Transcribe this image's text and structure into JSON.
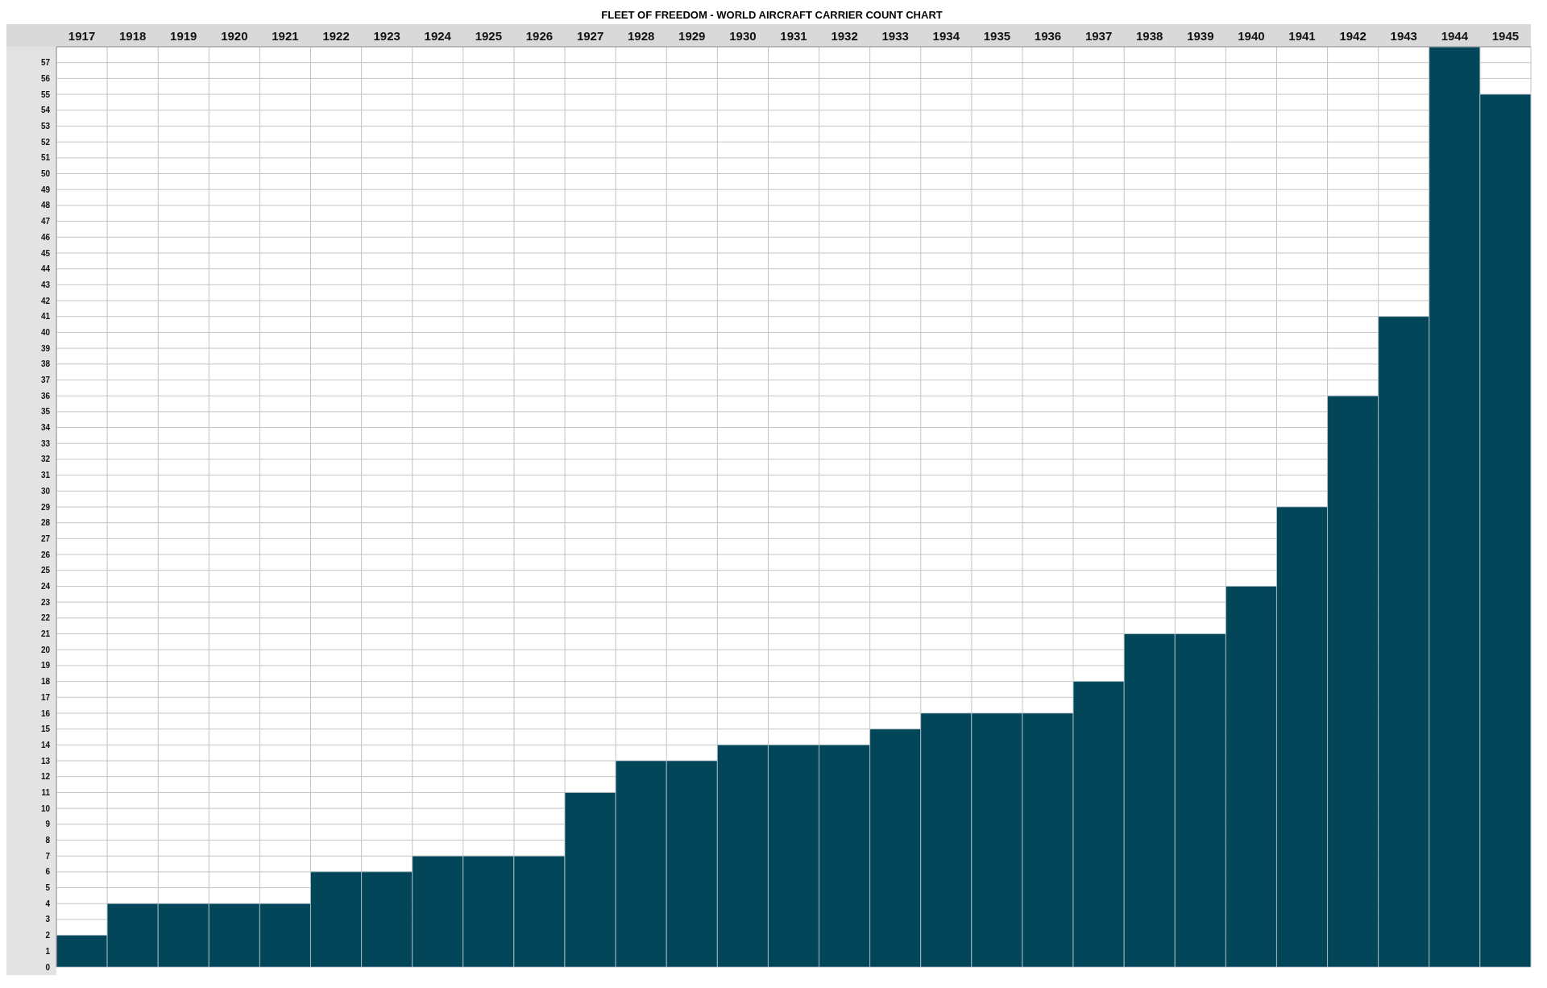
{
  "chart_data": {
    "type": "bar",
    "title": "FLEET OF FREEDOM - WORLD AIRCRAFT CARRIER COUNT CHART",
    "categories": [
      "1917",
      "1918",
      "1919",
      "1920",
      "1921",
      "1922",
      "1923",
      "1924",
      "1925",
      "1926",
      "1927",
      "1928",
      "1929",
      "1930",
      "1931",
      "1932",
      "1933",
      "1934",
      "1935",
      "1936",
      "1937",
      "1938",
      "1939",
      "1940",
      "1941",
      "1942",
      "1943",
      "1944",
      "1945"
    ],
    "values": [
      2,
      4,
      4,
      4,
      4,
      6,
      6,
      7,
      7,
      7,
      11,
      13,
      13,
      14,
      14,
      14,
      15,
      16,
      16,
      16,
      18,
      21,
      21,
      24,
      29,
      36,
      41,
      58,
      55
    ],
    "color": "#034659",
    "ylim": [
      0,
      58
    ],
    "yticks": [
      0,
      1,
      2,
      3,
      4,
      5,
      6,
      7,
      8,
      9,
      10,
      11,
      12,
      13,
      14,
      15,
      16,
      17,
      18,
      19,
      20,
      21,
      22,
      23,
      24,
      25,
      26,
      27,
      28,
      29,
      30,
      31,
      32,
      33,
      34,
      35,
      36,
      37,
      38,
      39,
      40,
      41,
      42,
      43,
      44,
      45,
      46,
      47,
      48,
      49,
      50,
      51,
      52,
      53,
      54,
      55,
      56,
      57
    ],
    "grid": true
  }
}
